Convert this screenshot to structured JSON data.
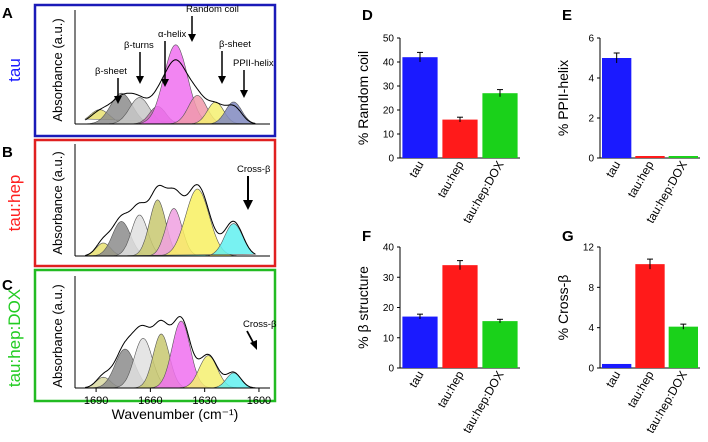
{
  "colors": {
    "blue": "#1a1aff",
    "red": "#ff1a1a",
    "green": "#1ad11a",
    "tau_frame": "#1a1ab8",
    "hep_frame": "#e02020",
    "dox_frame": "#22bb22",
    "tau_label": "#1a1aff",
    "hep_label": "#ff2020",
    "dox_label": "#22cc22"
  },
  "spectra": {
    "shared_ylabel": "Absorbance (a.u.)",
    "xlabel": "Wavenumber (cm⁻¹)",
    "xlim": [
      1700,
      1595
    ],
    "xticks": [
      1690,
      1660,
      1630,
      1600
    ],
    "panels": [
      {
        "letter": "A",
        "condition": "tau",
        "annotations": [
          "β-sheet",
          "β-turns",
          "α-helix",
          "Random coil",
          "β-sheet",
          "PPII-helix"
        ],
        "bands": [
          {
            "center": 1688,
            "width": 5.5,
            "height": 0.13,
            "color": "#e8e070"
          },
          {
            "center": 1676,
            "width": 6.0,
            "height": 0.28,
            "color": "#8c8c8c"
          },
          {
            "center": 1666,
            "width": 5.5,
            "height": 0.24,
            "color": "#c8c8c8"
          },
          {
            "center": 1656,
            "width": 4.5,
            "height": 0.16,
            "color": "#c070b0"
          },
          {
            "center": 1646,
            "width": 6.5,
            "height": 0.72,
            "color": "#f070f0"
          },
          {
            "center": 1634,
            "width": 5.0,
            "height": 0.26,
            "color": "#f09aaa"
          },
          {
            "center": 1624,
            "width": 4.5,
            "height": 0.2,
            "color": "#f5f070"
          },
          {
            "center": 1614,
            "width": 4.5,
            "height": 0.2,
            "color": "#8088c0"
          }
        ],
        "envelope_scale": 1.0
      },
      {
        "letter": "B",
        "condition": "tau:hep",
        "annotations": [
          "Cross-β"
        ],
        "bands": [
          {
            "center": 1686,
            "width": 4.0,
            "height": 0.12,
            "color": "#e8e070"
          },
          {
            "center": 1676,
            "width": 5.0,
            "height": 0.32,
            "color": "#8c8c8c"
          },
          {
            "center": 1666,
            "width": 4.5,
            "height": 0.38,
            "color": "#e0e0e0"
          },
          {
            "center": 1656,
            "width": 4.5,
            "height": 0.52,
            "color": "#c8c870"
          },
          {
            "center": 1647,
            "width": 4.5,
            "height": 0.44,
            "color": "#f0a0e0"
          },
          {
            "center": 1634,
            "width": 6.5,
            "height": 0.62,
            "color": "#f8f060"
          },
          {
            "center": 1614,
            "width": 5.0,
            "height": 0.3,
            "color": "#60f0f0"
          }
        ],
        "envelope_scale": 1.35
      },
      {
        "letter": "C",
        "condition": "tau:hep:DOX",
        "annotations": [
          "Cross-β"
        ],
        "bands": [
          {
            "center": 1686,
            "width": 4.0,
            "height": 0.1,
            "color": "#d8d8a0"
          },
          {
            "center": 1674,
            "width": 5.5,
            "height": 0.36,
            "color": "#8c8c8c"
          },
          {
            "center": 1664,
            "width": 5.0,
            "height": 0.46,
            "color": "#e0e0e0"
          },
          {
            "center": 1654,
            "width": 4.5,
            "height": 0.5,
            "color": "#c8c870"
          },
          {
            "center": 1643,
            "width": 5.0,
            "height": 0.62,
            "color": "#f070f0"
          },
          {
            "center": 1628,
            "width": 5.0,
            "height": 0.3,
            "color": "#f5f070"
          },
          {
            "center": 1614,
            "width": 4.0,
            "height": 0.14,
            "color": "#60f0f0"
          }
        ],
        "envelope_scale": 1.3
      }
    ]
  },
  "chart_data": [
    {
      "letter": "D",
      "type": "bar",
      "ylabel": "% Random coil",
      "categories": [
        "tau",
        "tau:hep",
        "tau:hep:DOX"
      ],
      "values": [
        42,
        16,
        27
      ],
      "errors": [
        2.0,
        1.0,
        1.5
      ],
      "ylim": [
        0,
        50
      ],
      "yticks": [
        0,
        10,
        20,
        30,
        40,
        50
      ]
    },
    {
      "letter": "E",
      "type": "bar",
      "ylabel": "% PPII-helix",
      "categories": [
        "tau",
        "tau:hep",
        "tau:hep:DOX"
      ],
      "values": [
        5.0,
        0.1,
        0.1
      ],
      "errors": [
        0.25,
        0.0,
        0.0
      ],
      "ylim": [
        0,
        6
      ],
      "yticks": [
        0,
        2,
        4,
        6
      ]
    },
    {
      "letter": "F",
      "type": "bar",
      "ylabel": "% β structure",
      "categories": [
        "tau",
        "tau:hep",
        "tau:hep:DOX"
      ],
      "values": [
        17,
        34,
        15.5
      ],
      "errors": [
        0.8,
        1.5,
        0.6
      ],
      "ylim": [
        0,
        40
      ],
      "yticks": [
        0,
        10,
        20,
        30,
        40
      ]
    },
    {
      "letter": "G",
      "type": "bar",
      "ylabel": "% Cross-β",
      "categories": [
        "tau",
        "tau:hep",
        "tau:hep:DOX"
      ],
      "values": [
        0.4,
        10.3,
        4.1
      ],
      "errors": [
        0.0,
        0.5,
        0.25
      ],
      "ylim": [
        0,
        12
      ],
      "yticks": [
        0,
        4,
        8,
        12
      ]
    }
  ]
}
